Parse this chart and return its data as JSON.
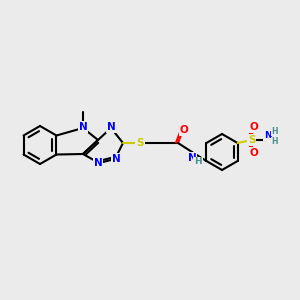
{
  "background_color": "#ebebeb",
  "bond_color": "#000000",
  "bond_lw": 1.5,
  "atom_colors": {
    "N": "#0000ff",
    "O": "#ff0000",
    "S": "#cccc00",
    "H": "#4a9090",
    "C": "#000000"
  },
  "font_size": 7.5,
  "font_size_small": 6.5
}
